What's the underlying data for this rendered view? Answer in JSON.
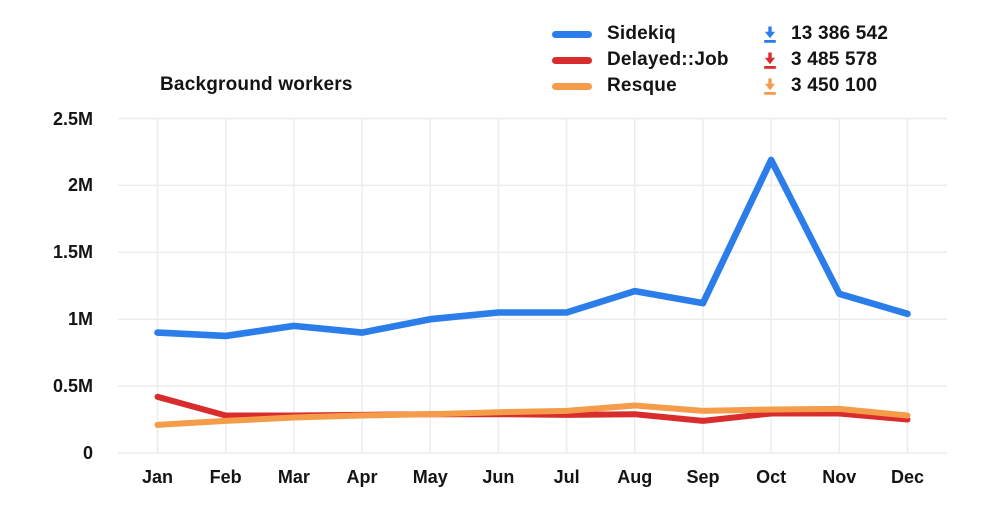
{
  "title": "Background workers",
  "legend": {
    "items": [
      {
        "label": "Sidekiq",
        "count": "13 386 542",
        "color": "#2b7de9"
      },
      {
        "label": "Delayed::Job",
        "count": "3 485 578",
        "color": "#d92c2c"
      },
      {
        "label": "Resque",
        "count": "3 450 100",
        "color": "#f59c4a"
      }
    ]
  },
  "chart_data": {
    "type": "line",
    "title": "Background workers",
    "categories": [
      "Jan",
      "Feb",
      "Mar",
      "Apr",
      "May",
      "Jun",
      "Jul",
      "Aug",
      "Sep",
      "Oct",
      "Nov",
      "Dec"
    ],
    "values_unit": "millions",
    "series": [
      {
        "name": "Sidekiq",
        "color": "#2b7de9",
        "stroke_width": 6.6,
        "values": [
          0.9,
          0.875,
          0.95,
          0.9,
          1.0,
          1.05,
          1.05,
          1.21,
          1.12,
          2.19,
          1.19,
          1.04
        ]
      },
      {
        "name": "Delayed::Job",
        "color": "#d92c2c",
        "stroke_width": 6,
        "values": [
          0.42,
          0.28,
          0.28,
          0.285,
          0.29,
          0.29,
          0.285,
          0.29,
          0.24,
          0.295,
          0.295,
          0.25
        ]
      },
      {
        "name": "Resque",
        "color": "#f59c4a",
        "stroke_width": 6,
        "values": [
          0.21,
          0.24,
          0.265,
          0.28,
          0.29,
          0.305,
          0.315,
          0.355,
          0.315,
          0.325,
          0.33,
          0.28
        ]
      }
    ],
    "y_ticks": [
      "0",
      "0.5M",
      "1M",
      "1.5M",
      "2M",
      "2.5M"
    ],
    "y_tick_step": 0.5,
    "ylim": [
      0,
      2500000
    ],
    "grid": true,
    "grid_color": "#ececec",
    "legend_position": "top-right"
  }
}
